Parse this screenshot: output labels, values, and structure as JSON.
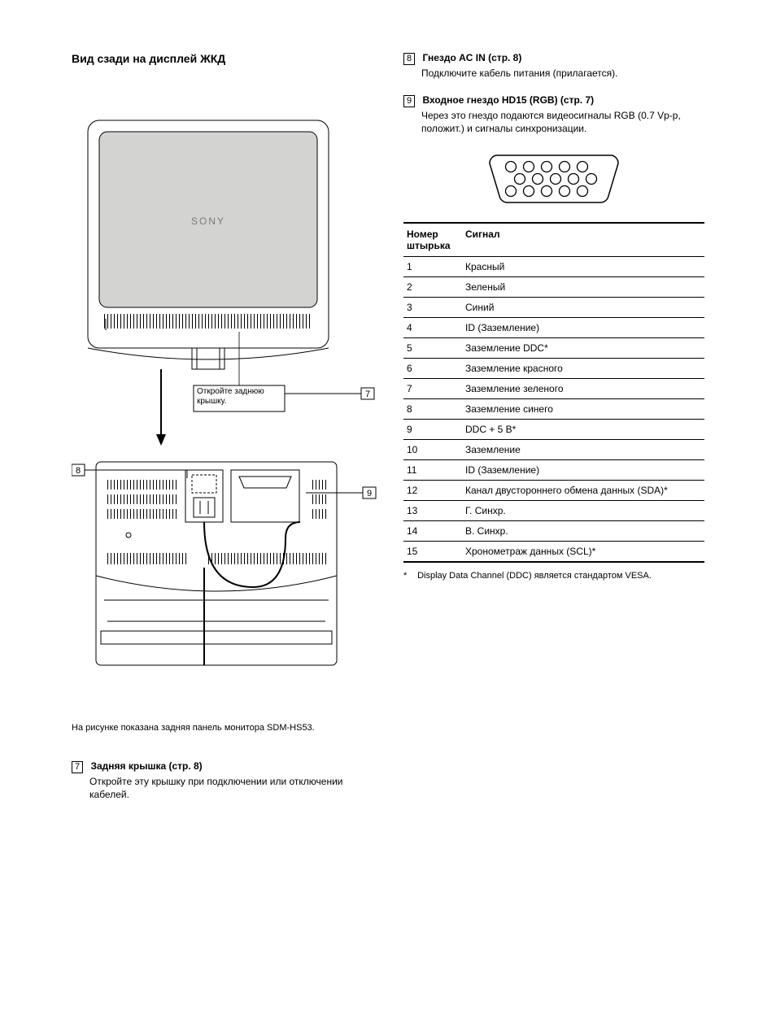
{
  "left": {
    "title": "Вид сзади на дисплей ЖКД",
    "diagram": {
      "brand_text": "SONY",
      "cover_label": "Откройте заднюю крышку.",
      "callouts": {
        "c7": "7",
        "c8": "8",
        "c9": "9"
      },
      "colors": {
        "stroke": "#000000",
        "screen_fill": "#d3d3d2",
        "bg": "#ffffff"
      },
      "line_width": 1
    },
    "caption": "На рисунке показана задняя панель монитора SDM-HS53.",
    "item7": {
      "num": "7",
      "title": "Задняя крышка (стр. 8)",
      "body": "Откройте эту крышку при подключении или отключении кабелей."
    }
  },
  "right": {
    "item8": {
      "num": "8",
      "title": "Гнездо AC IN (стр. 8)",
      "body": "Подключите кабель питания (прилагается)."
    },
    "item9": {
      "num": "9",
      "title": "Входное гнездо HD15 (RGB) (стр. 7)",
      "body": "Через это гнездо подаются видеосигналы RGB (0.7 Vp-p, положит.) и сигналы синхронизации."
    },
    "connector": {
      "rows": [
        5,
        5,
        5
      ],
      "stroke": "#000000",
      "line_width": 1.5
    },
    "table": {
      "headers": {
        "pin": "Номер штырька",
        "signal": "Сигнал"
      },
      "rows": [
        {
          "pin": "1",
          "signal": "Красный"
        },
        {
          "pin": "2",
          "signal": "Зеленый"
        },
        {
          "pin": "3",
          "signal": "Синий"
        },
        {
          "pin": "4",
          "signal": "ID (Заземление)"
        },
        {
          "pin": "5",
          "signal": "Заземление DDC*"
        },
        {
          "pin": "6",
          "signal": "Заземление красного"
        },
        {
          "pin": "7",
          "signal": "Заземление зеленого"
        },
        {
          "pin": "8",
          "signal": "Заземление синего"
        },
        {
          "pin": "9",
          "signal": "DDC + 5 В*"
        },
        {
          "pin": "10",
          "signal": "Заземление"
        },
        {
          "pin": "11",
          "signal": "ID (Заземление)"
        },
        {
          "pin": "12",
          "signal": "Канал двустороннего обмена данных (SDA)*"
        },
        {
          "pin": "13",
          "signal": "Г. Синхр."
        },
        {
          "pin": "14",
          "signal": "В. Синхр."
        },
        {
          "pin": "15",
          "signal": "Хронометраж данных (SCL)*"
        }
      ]
    },
    "footnote": {
      "mark": "*",
      "text": "Display Data Channel (DDC) является стандартом VESA."
    }
  }
}
